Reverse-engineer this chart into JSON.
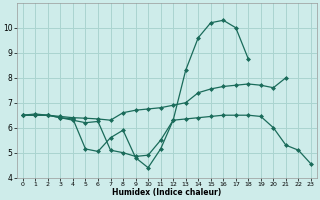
{
  "xlabel": "Humidex (Indice chaleur)",
  "bg_color": "#ceecea",
  "grid_color": "#aad4d0",
  "line_color": "#1a6b5a",
  "xlim": [
    -0.5,
    23.5
  ],
  "ylim": [
    4,
    11
  ],
  "xticks": [
    0,
    1,
    2,
    3,
    4,
    5,
    6,
    7,
    8,
    9,
    10,
    11,
    12,
    13,
    14,
    15,
    16,
    17,
    18,
    19,
    20,
    21,
    22,
    23
  ],
  "yticks": [
    4,
    5,
    6,
    7,
    8,
    9,
    10
  ],
  "line_peak_x": [
    0,
    1,
    2,
    3,
    4,
    5,
    6,
    7,
    8,
    9,
    10,
    11,
    12,
    13,
    14,
    15,
    16,
    17,
    18
  ],
  "line_peak_y": [
    6.5,
    6.5,
    6.5,
    6.4,
    6.35,
    5.15,
    5.05,
    5.6,
    5.9,
    4.8,
    4.4,
    5.15,
    6.3,
    8.3,
    9.6,
    10.2,
    10.3,
    10.0,
    8.75
  ],
  "line_up_x": [
    0,
    1,
    2,
    3,
    4,
    5,
    6,
    7,
    8,
    9,
    10,
    11,
    12,
    13,
    14,
    15,
    16,
    17,
    18,
    19,
    20,
    21
  ],
  "line_up_y": [
    6.5,
    6.5,
    6.5,
    6.45,
    6.4,
    6.38,
    6.35,
    6.3,
    6.6,
    6.7,
    6.75,
    6.8,
    6.9,
    7.0,
    7.4,
    7.55,
    7.65,
    7.7,
    7.75,
    7.7,
    7.6,
    8.0
  ],
  "line_down_x": [
    0,
    1,
    2,
    3,
    4,
    5,
    6,
    7,
    8,
    9,
    10,
    11,
    12,
    13,
    14,
    15,
    16,
    17,
    18,
    19,
    20,
    21,
    22,
    23
  ],
  "line_down_y": [
    6.5,
    6.55,
    6.5,
    6.4,
    6.3,
    6.2,
    6.25,
    5.1,
    5.0,
    4.85,
    4.9,
    5.5,
    6.3,
    6.35,
    6.4,
    6.45,
    6.5,
    6.5,
    6.5,
    6.45,
    6.0,
    5.3,
    5.1,
    4.55
  ]
}
